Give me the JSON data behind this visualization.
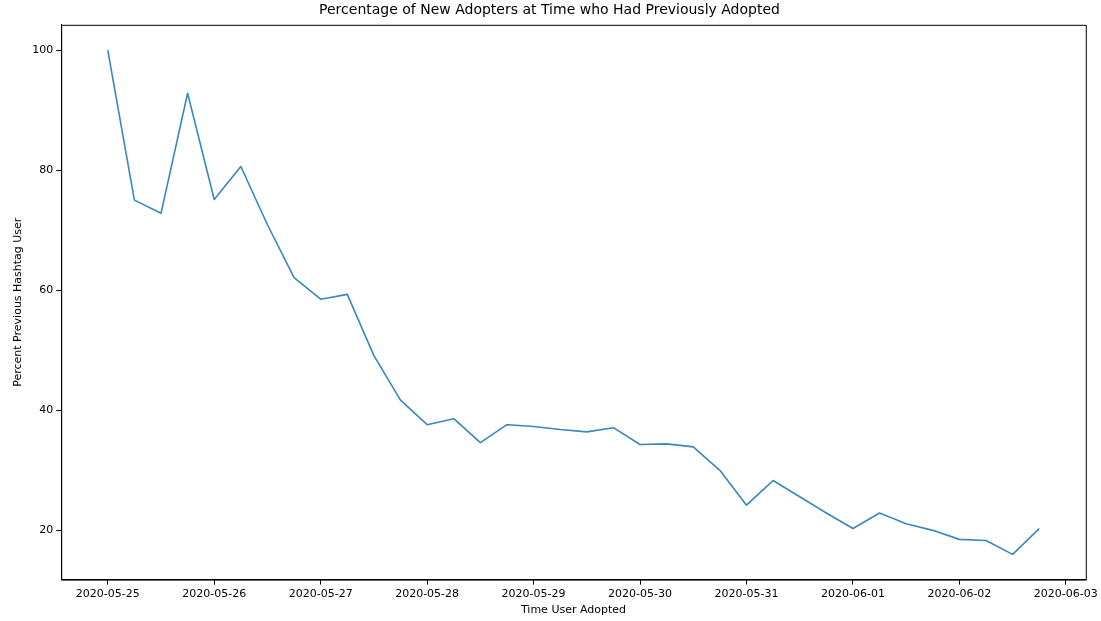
{
  "chart_data": {
    "type": "line",
    "title": "Percentage of New Adopters at Time who Had Previously Adopted",
    "xlabel": "Time User Adopted",
    "ylabel": "Percent Previous Hashtag User",
    "x": [
      "2020-05-25T00:00",
      "2020-05-25T06:00",
      "2020-05-25T12:00",
      "2020-05-25T18:00",
      "2020-05-26T00:00",
      "2020-05-26T06:00",
      "2020-05-26T12:00",
      "2020-05-26T18:00",
      "2020-05-27T00:00",
      "2020-05-27T06:00",
      "2020-05-27T12:00",
      "2020-05-27T18:00",
      "2020-05-28T00:00",
      "2020-05-28T06:00",
      "2020-05-28T12:00",
      "2020-05-28T18:00",
      "2020-05-29T00:00",
      "2020-05-29T06:00",
      "2020-05-29T12:00",
      "2020-05-29T18:00",
      "2020-05-30T00:00",
      "2020-05-30T06:00",
      "2020-05-30T12:00",
      "2020-05-30T18:00",
      "2020-05-31T00:00",
      "2020-05-31T06:00",
      "2020-05-31T12:00",
      "2020-05-31T18:00",
      "2020-06-01T00:00",
      "2020-06-01T06:00",
      "2020-06-01T12:00",
      "2020-06-01T18:00",
      "2020-06-02T00:00",
      "2020-06-02T06:00",
      "2020-06-02T12:00",
      "2020-06-02T18:00"
    ],
    "series": [
      {
        "color": "#3a87c0",
        "values": [
          100,
          75,
          72.8,
          92.8,
          75.1,
          80.6,
          70.9,
          62.1,
          58.5,
          59.3,
          49.1,
          41.7,
          37.6,
          38.6,
          34.6,
          37.6,
          37.3,
          36.8,
          36.4,
          37.1,
          34.3,
          34.4,
          33.9,
          30,
          24.2,
          28.3,
          25.6,
          22.9,
          20.3,
          22.9,
          21.1,
          20,
          18.5,
          18.3,
          16,
          20.3
        ]
      }
    ],
    "xlim": [
      "2020-05-24T13:30",
      "2020-06-03T04:30"
    ],
    "xticks": [
      "2020-05-25",
      "2020-05-26",
      "2020-05-27",
      "2020-05-28",
      "2020-05-29",
      "2020-05-30",
      "2020-05-31",
      "2020-06-01",
      "2020-06-02",
      "2020-06-03"
    ],
    "ylim": [
      11.8,
      104.2
    ],
    "yticks": [
      20,
      40,
      60,
      80,
      100
    ],
    "grid": false,
    "legend": false,
    "marker": "none",
    "line_style": "solid"
  }
}
